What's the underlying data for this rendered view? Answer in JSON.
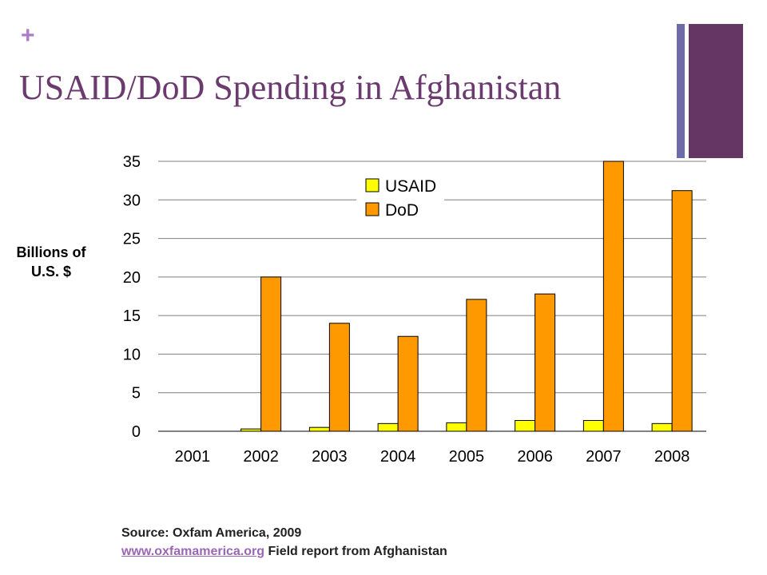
{
  "slide": {
    "plus_symbol": "+",
    "title": "USAID/DoD Spending in Afghanistan",
    "accent_colors": [
      "#6f6ba8",
      "#653563"
    ],
    "title_color": "#6b3a6e"
  },
  "chart_data": {
    "type": "bar",
    "title": "",
    "ylabel": "Billions of U.S. $",
    "xlabel": "",
    "categories": [
      "2001",
      "2002",
      "2003",
      "2004",
      "2005",
      "2006",
      "2007",
      "2008"
    ],
    "ylim": [
      0,
      35
    ],
    "yticks": [
      0,
      5,
      10,
      15,
      20,
      25,
      30,
      35
    ],
    "grid": true,
    "legend": "top-center",
    "series": [
      {
        "name": "USAID",
        "color": "#ffff00",
        "values": [
          0,
          0.3,
          0.5,
          1.0,
          1.1,
          1.4,
          1.4,
          1.0
        ]
      },
      {
        "name": "DoD",
        "color": "#ff9900",
        "values": [
          0,
          20.0,
          14.0,
          12.3,
          17.1,
          17.8,
          35.0,
          31.2
        ]
      }
    ]
  },
  "footer": {
    "source": "Source: Oxfam America, 2009",
    "link_text": "www.oxfamamerica.org",
    "link_suffix": " Field report from Afghanistan"
  }
}
